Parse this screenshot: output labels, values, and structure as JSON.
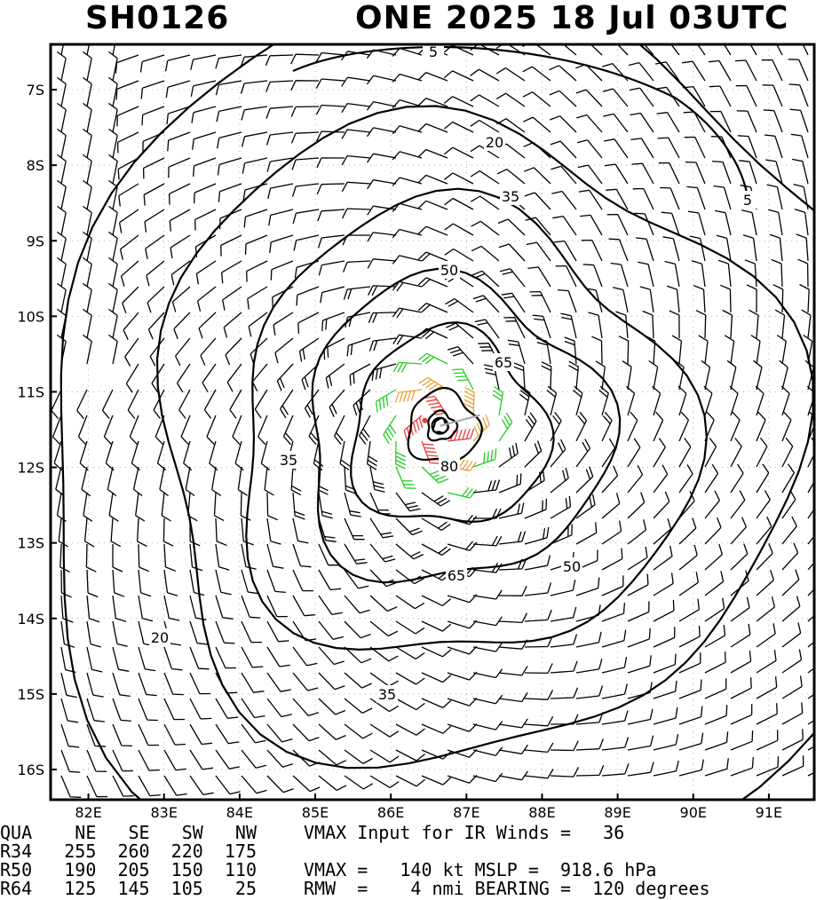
{
  "header": {
    "storm_id": "SH0126",
    "name_date": "ONE 2025 18 Jul 03UTC"
  },
  "map": {
    "lon_labels": [
      "82E",
      "83E",
      "84E",
      "85E",
      "86E",
      "87E",
      "88E",
      "89E",
      "90E",
      "91E"
    ],
    "lat_labels": [
      "7S",
      "8S",
      "9S",
      "10S",
      "11S",
      "12S",
      "13S",
      "14S",
      "15S",
      "16S"
    ],
    "storm_center": {
      "lon": 86.65,
      "lat": -11.45
    },
    "contour_labels": [
      "5",
      "5",
      "20",
      "20",
      "35",
      "35",
      "35",
      "50",
      "50",
      "65",
      "65",
      "80"
    ],
    "wind_colors": {
      "below_34kt": "#000000",
      "34_to_49kt": "#22cc22",
      "50_to_63kt": "#e8a13a",
      "64_to_79kt": "#f07d2e",
      "80_plus_kt": "#ee3a3a",
      "contour": "#000000",
      "grid": "#b0b0b0"
    }
  },
  "radii_table": {
    "header": "QUA    NE   SE   SW   NW",
    "rows": [
      "R34   255  260  220  175",
      "R50   190  205  150  110",
      "R64   125  145  105   25"
    ]
  },
  "stats": {
    "vmax_ir": "VMAX Input for IR Winds =   36",
    "vmax_mslp": "VMAX =   140 kt MSLP =  918.6 hPa",
    "rmw_bearing": "RMW  =    4 nmi BEARING =  120 degrees"
  }
}
